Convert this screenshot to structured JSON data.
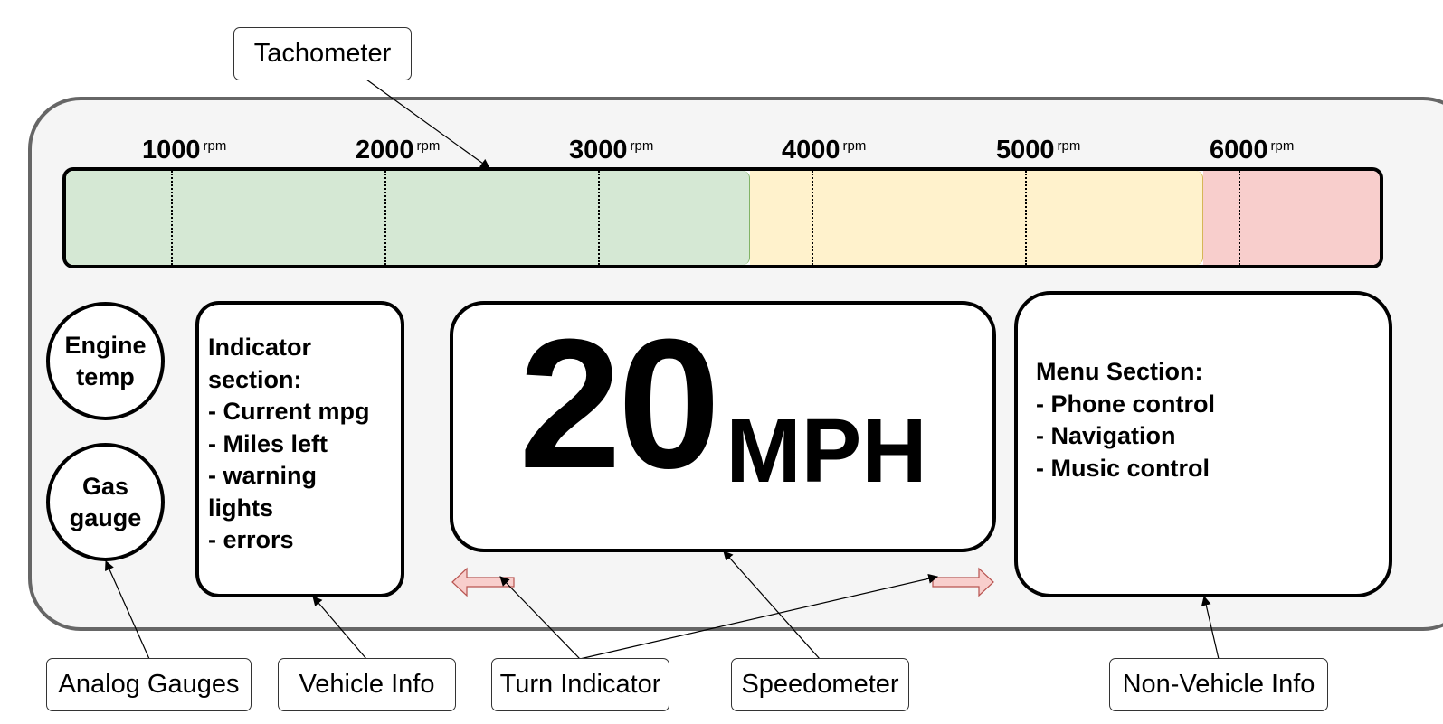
{
  "tachometer": {
    "ticks": [
      {
        "value": "1000",
        "unit": "rpm"
      },
      {
        "value": "2000",
        "unit": "rpm"
      },
      {
        "value": "3000",
        "unit": "rpm"
      },
      {
        "value": "4000",
        "unit": "rpm"
      },
      {
        "value": "5000",
        "unit": "rpm"
      },
      {
        "value": "6000",
        "unit": "rpm"
      }
    ],
    "zones": [
      {
        "name": "normal",
        "color": "#d5e8d4"
      },
      {
        "name": "caution",
        "color": "#fff2cc"
      },
      {
        "name": "redline",
        "color": "#f8cecc"
      }
    ]
  },
  "gauges": {
    "engine_temp": [
      "Engine",
      "temp"
    ],
    "gas_gauge": [
      "Gas",
      "gauge"
    ]
  },
  "indicator_section": {
    "lines": [
      "Indicator",
      "section:",
      "- Current mpg",
      "- Miles left",
      "- warning",
      "lights",
      "- errors"
    ]
  },
  "speedometer": {
    "value": "20",
    "unit": "MPH"
  },
  "menu_section": {
    "lines": [
      "Menu Section:",
      "- Phone control",
      "- Navigation",
      "- Music control"
    ]
  },
  "callouts": {
    "tachometer": "Tachometer",
    "analog_gauges": "Analog Gauges",
    "vehicle_info": "Vehicle Info",
    "turn_indicator": "Turn Indicator",
    "speedometer": "Speedometer",
    "non_vehicle_info": "Non-Vehicle Info"
  },
  "colors": {
    "dashboard_bg": "#f5f5f5",
    "dashboard_border": "#666666",
    "turn_arrow_fill": "#f8cecc",
    "turn_arrow_stroke": "#b85450"
  }
}
